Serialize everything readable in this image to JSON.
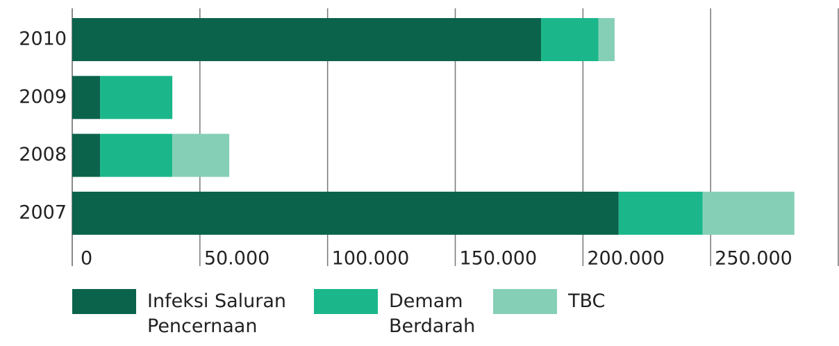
{
  "chart_data": {
    "type": "bar",
    "orientation": "horizontal",
    "stacked": true,
    "categories": [
      "2010",
      "2009",
      "2008",
      "2007"
    ],
    "series": [
      {
        "name": "Infeksi Saluran Pencernaan",
        "color": "#0c634c",
        "values": [
          183600,
          10900,
          10900,
          214000
        ]
      },
      {
        "name": "Demam Berdarah",
        "color": "#1bb78b",
        "values": [
          22500,
          28300,
          28300,
          32900
        ]
      },
      {
        "name": "TBC",
        "color": "#86cfb7",
        "values": [
          6300,
          0,
          22300,
          35900
        ]
      }
    ],
    "xlim": [
      0,
      300000
    ],
    "xticks": [
      0,
      {
        "value": 50000,
        "label": "50.000"
      },
      {
        "value": 100000,
        "label": "100.000"
      },
      {
        "value": 150000,
        "label": "150.000"
      },
      {
        "value": 200000,
        "label": "200.000"
      },
      {
        "value": 250000,
        "label": "250.000"
      }
    ],
    "grid": true
  }
}
